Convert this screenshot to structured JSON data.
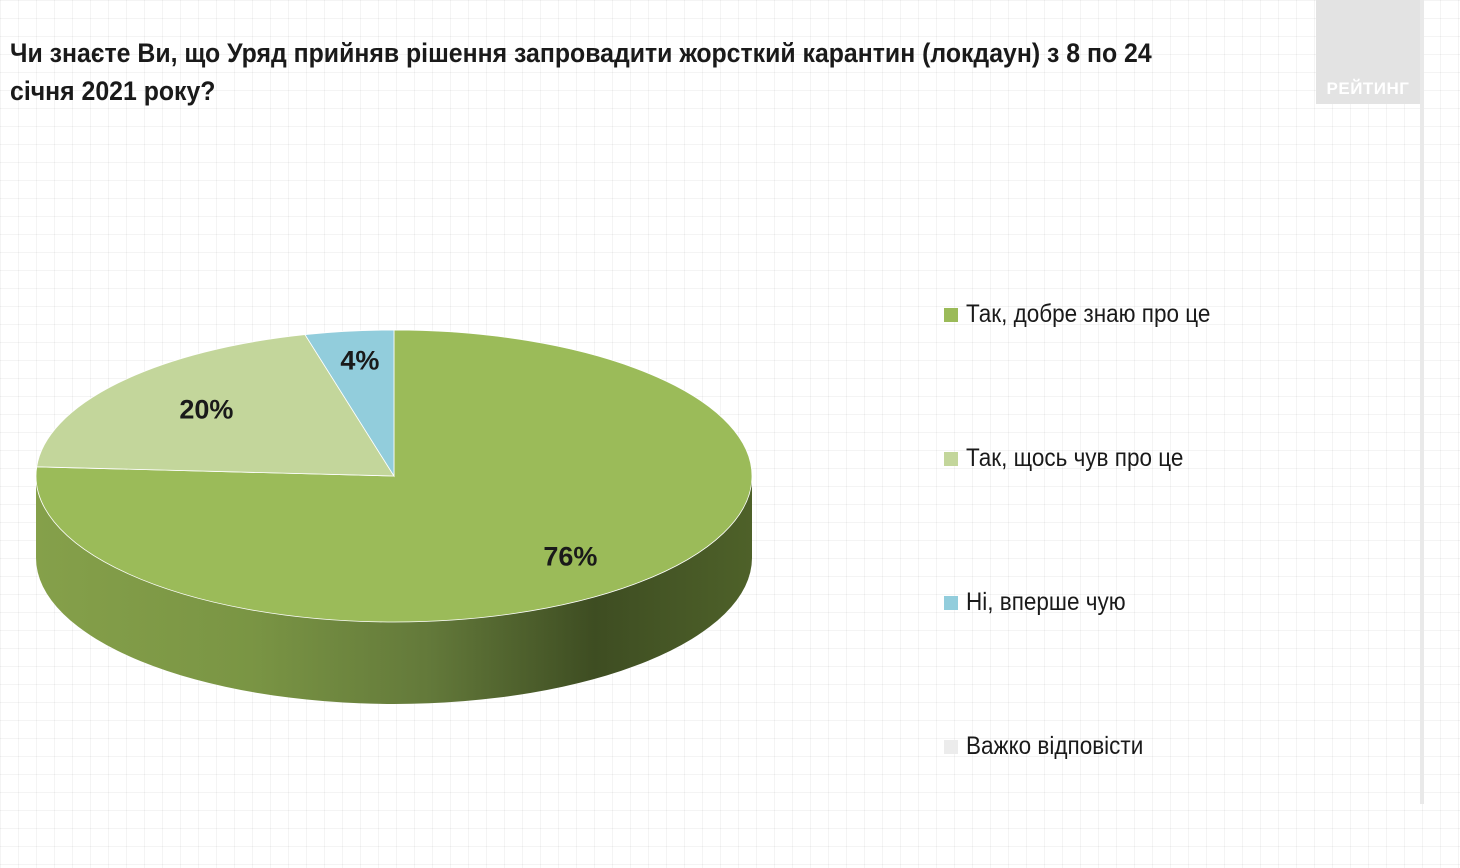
{
  "title": "Чи знаєте Ви, що Уряд прийняв рішення запровадити жорсткий карантин (локдаун) з 8 по 24 січня 2021 року?",
  "brand": "РЕЙТИНГ",
  "chart_data": {
    "type": "pie",
    "title": "Чи знаєте Ви, що Уряд прийняв рішення запровадити жорсткий карантин (локдаун) з 8 по 24 січня 2021 року?",
    "three_d": true,
    "legend_position": "right",
    "unit": "%",
    "slices": [
      {
        "label": "Так, добре знаю про це",
        "value": 76,
        "data_label": "76%",
        "color": "#9bbb59"
      },
      {
        "label": "Так, щось чув про це",
        "value": 20,
        "data_label": "20%",
        "color": "#c3d69b"
      },
      {
        "label": "Ні, вперше чую",
        "value": 4,
        "data_label": "4%",
        "color": "#92cddc"
      },
      {
        "label": "Важко відповісти",
        "value": 0,
        "data_label": "",
        "color": "#ececec"
      }
    ]
  }
}
